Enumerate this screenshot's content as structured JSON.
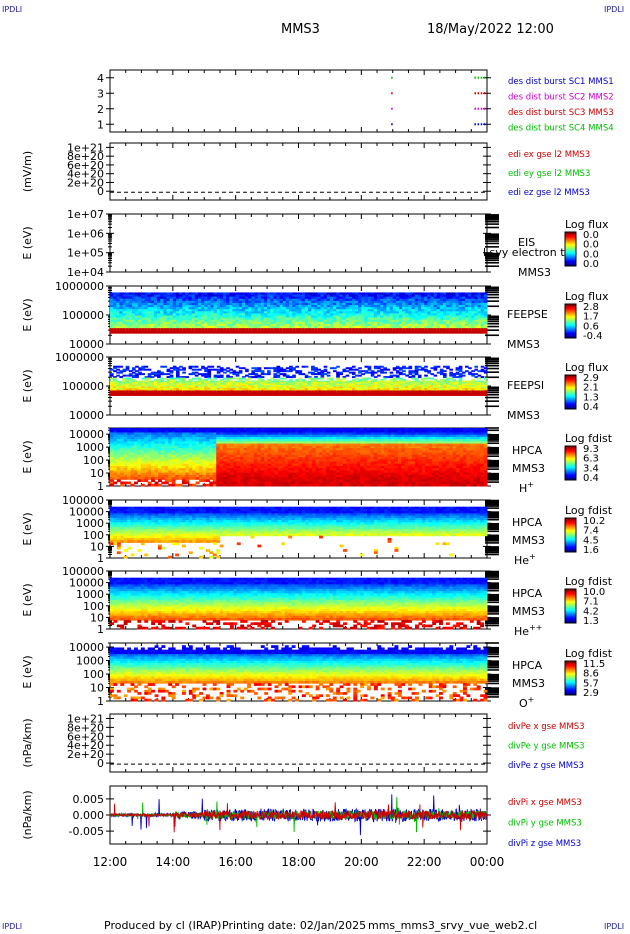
{
  "header": {
    "corner_label": "IPDLI",
    "spacecraft": "MMS3",
    "date_time": "18/May/2022 12:00"
  },
  "footer": {
    "credit": "Produced by cl (IRAP)",
    "print_date": "Printing date: 02/Jan/2025",
    "filename": "mms_mms3_srvy_vue_web2.cl"
  },
  "chart_data": [
    {
      "id": "burst",
      "type": "scatter",
      "ylim": [
        0.5,
        4.5
      ],
      "yticks": [
        "1",
        "2",
        "3",
        "4"
      ],
      "legend_entries": [
        {
          "name": "des dist burst SC1 MMS1",
          "color": "#0000cc"
        },
        {
          "name": "des dist burst SC2 MMS2",
          "color": "#cc00cc"
        },
        {
          "name": "des dist burst SC3 MMS3",
          "color": "#cc0000"
        },
        {
          "name": "des dist burst SC4 MMS4",
          "color": "#00bb00"
        }
      ],
      "series": [
        {
          "name": "des dist burst SC1 MMS1",
          "y": 1,
          "x_hours": [
            20.95,
            23.6,
            23.7,
            23.8,
            23.9
          ]
        },
        {
          "name": "des dist burst SC2 MMS2",
          "y": 2,
          "x_hours": [
            20.95,
            23.6,
            23.7,
            23.8,
            23.9
          ]
        },
        {
          "name": "des dist burst SC3 MMS3",
          "y": 3,
          "x_hours": [
            20.95,
            23.6,
            23.7,
            23.8,
            23.9
          ]
        },
        {
          "name": "des dist burst SC4 MMS4",
          "y": 4,
          "x_hours": [
            20.95,
            23.6,
            23.7,
            23.8,
            23.9
          ]
        }
      ]
    },
    {
      "id": "edi",
      "type": "line",
      "ylabel": "(mV/m)",
      "ylim": [
        -2e+20,
        1.1e+21
      ],
      "yticks": [
        "0",
        "2e+20",
        "4e+20",
        "6e+20",
        "8e+20",
        "1e+21"
      ],
      "legend_entries": [
        {
          "name": "edi ex gse l2 MMS3",
          "color": "#cc0000"
        },
        {
          "name": "edi ey gse l2 MMS3",
          "color": "#00bb00"
        },
        {
          "name": "edi ez gse l2 MMS3",
          "color": "#0000cc"
        }
      ]
    },
    {
      "id": "eis",
      "type": "heatmap",
      "ylabel": "E (eV)",
      "yscale": "log",
      "ylim": [
        10000,
        10000000
      ],
      "yticks": [
        "1e+04",
        "1e+05",
        "1e+06",
        "1e+07"
      ],
      "side_labels": [
        "EIS",
        "MMS3"
      ],
      "overlay_text": "l svy electron to",
      "colorbar": {
        "title": "Log flux",
        "ticks": [
          "0.0",
          "0.0",
          "0.0",
          "0.0"
        ]
      }
    },
    {
      "id": "feepse",
      "type": "heatmap",
      "ylabel": "E (eV)",
      "yscale": "log",
      "ylim": [
        10000,
        1000000
      ],
      "yticks": [
        "10000",
        "100000",
        "1000000"
      ],
      "side_labels": [
        "FEEPSE",
        "MMS3"
      ],
      "colorbar": {
        "title": "Log flux",
        "ticks": [
          "2.8",
          "1.7",
          "0.6",
          "-0.4"
        ]
      }
    },
    {
      "id": "feepsi",
      "type": "heatmap",
      "ylabel": "E (eV)",
      "yscale": "log",
      "ylim": [
        10000,
        1000000
      ],
      "yticks": [
        "10000",
        "100000",
        "1000000"
      ],
      "side_labels": [
        "FEEPSI",
        "MMS3"
      ],
      "colorbar": {
        "title": "Log flux",
        "ticks": [
          "2.9",
          "2.1",
          "1.3",
          "0.4"
        ]
      }
    },
    {
      "id": "hpca_h",
      "type": "heatmap",
      "ylabel": "E (eV)",
      "yscale": "log",
      "ylim": [
        1,
        30000
      ],
      "yticks": [
        "1",
        "10",
        "100",
        "1000",
        "10000"
      ],
      "side_labels": [
        "HPCA",
        "MMS3"
      ],
      "species": "H",
      "species_charge": "+",
      "colorbar": {
        "title": "Log fdist",
        "ticks": [
          "9.3",
          "6.3",
          "3.4",
          "0.4"
        ]
      }
    },
    {
      "id": "hpca_he",
      "type": "heatmap",
      "ylabel": "E (eV)",
      "yscale": "log",
      "ylim": [
        1,
        100000
      ],
      "yticks": [
        "1",
        "10",
        "100",
        "1000",
        "10000",
        "100000"
      ],
      "side_labels": [
        "HPCA",
        "MMS3"
      ],
      "species": "He",
      "species_charge": "+",
      "colorbar": {
        "title": "Log fdist",
        "ticks": [
          "10.2",
          "7.4",
          "4.5",
          "1.6"
        ]
      }
    },
    {
      "id": "hpca_he2",
      "type": "heatmap",
      "ylabel": "E (eV)",
      "yscale": "log",
      "ylim": [
        1,
        100000
      ],
      "yticks": [
        "1",
        "10",
        "100",
        "1000",
        "10000",
        "100000"
      ],
      "side_labels": [
        "HPCA",
        "MMS3"
      ],
      "species": "He",
      "species_charge": "++",
      "colorbar": {
        "title": "Log fdist",
        "ticks": [
          "10.0",
          "7.1",
          "4.2",
          "1.3"
        ]
      }
    },
    {
      "id": "hpca_o",
      "type": "heatmap",
      "ylabel": "E (eV)",
      "yscale": "log",
      "ylim": [
        1,
        20000
      ],
      "yticks": [
        "1",
        "10",
        "100",
        "1000",
        "10000"
      ],
      "side_labels": [
        "HPCA",
        "MMS3"
      ],
      "species": "O",
      "species_charge": "+",
      "colorbar": {
        "title": "Log fdist",
        "ticks": [
          "11.5",
          "8.6",
          "5.7",
          "2.9"
        ]
      }
    },
    {
      "id": "divpe",
      "type": "line",
      "ylabel": "(nPa/km)",
      "ylim": [
        -2e+20,
        1.1e+21
      ],
      "yticks": [
        "0",
        "2e+20",
        "4e+20",
        "6e+20",
        "8e+20",
        "1e+21"
      ],
      "legend_entries": [
        {
          "name": "divPe x gse MMS3",
          "color": "#cc0000"
        },
        {
          "name": "divPe y gse MMS3",
          "color": "#00bb00"
        },
        {
          "name": "divPe z gse MMS3",
          "color": "#0000cc"
        }
      ]
    },
    {
      "id": "divpi",
      "type": "line",
      "ylabel": "(nPa/km)",
      "ylim": [
        -0.009,
        0.009
      ],
      "yticks": [
        "-0.005",
        "0.000",
        "0.005"
      ],
      "legend_entries": [
        {
          "name": "divPi x gse MMS3",
          "color": "#cc0000"
        },
        {
          "name": "divPi y gse MMS3",
          "color": "#00bb00"
        },
        {
          "name": "divPi z gse MMS3",
          "color": "#0000cc"
        }
      ]
    }
  ],
  "x_axis": {
    "range_hours": [
      12,
      24
    ],
    "ticks": [
      "12:00",
      "14:00",
      "16:00",
      "18:00",
      "20:00",
      "22:00",
      "00:00"
    ]
  }
}
